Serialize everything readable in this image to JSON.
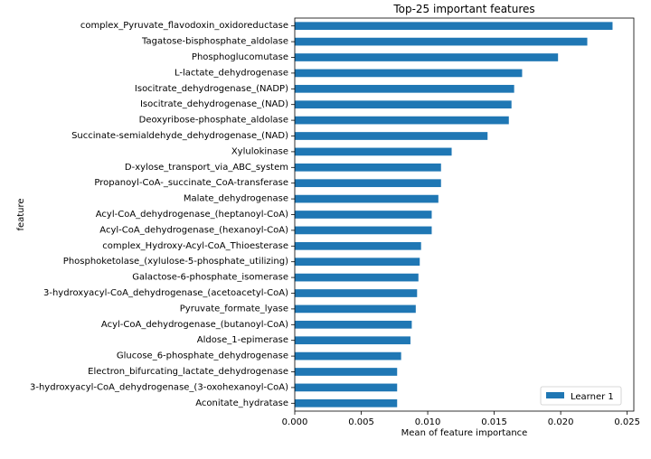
{
  "chart_data": {
    "type": "bar",
    "orientation": "horizontal",
    "title": "Top-25 important features",
    "xlabel": "Mean of feature importance",
    "ylabel": "feature",
    "xlim": [
      0,
      0.0255
    ],
    "xticks": [
      0.0,
      0.005,
      0.01,
      0.015,
      0.02,
      0.025
    ],
    "xtick_labels": [
      "0.000",
      "0.005",
      "0.010",
      "0.015",
      "0.020",
      "0.025"
    ],
    "grid": false,
    "legend_position": "lower-right",
    "bar_color": "#1f77b4",
    "categories": [
      "complex_Pyruvate_flavodoxin_oxidoreductase",
      "Tagatose-bisphosphate_aldolase",
      "Phosphoglucomutase",
      "L-lactate_dehydrogenase",
      "Isocitrate_dehydrogenase_(NADP)",
      "Isocitrate_dehydrogenase_(NAD)",
      "Deoxyribose-phosphate_aldolase",
      "Succinate-semialdehyde_dehydrogenase_(NAD)",
      "Xylulokinase",
      "D-xylose_transport_via_ABC_system",
      "Propanoyl-CoA-_succinate_CoA-transferase",
      "Malate_dehydrogenase",
      "Acyl-CoA_dehydrogenase_(heptanoyl-CoA)",
      "Acyl-CoA_dehydrogenase_(hexanoyl-CoA)",
      "complex_Hydroxy-Acyl-CoA_Thioesterase",
      "Phosphoketolase_(xylulose-5-phosphate_utilizing)",
      "Galactose-6-phosphate_isomerase",
      "3-hydroxyacyl-CoA_dehydrogenase_(acetoacetyl-CoA)",
      "Pyruvate_formate_lyase",
      "Acyl-CoA_dehydrogenase_(butanoyl-CoA)",
      "Aldose_1-epimerase",
      "Glucose_6-phosphate_dehydrogenase",
      "Electron_bifurcating_lactate_dehydrogenase",
      "3-hydroxyacyl-CoA_dehydrogenase_(3-oxohexanoyl-CoA)",
      "Aconitate_hydratase"
    ],
    "series": [
      {
        "name": "Learner 1",
        "values": [
          0.0239,
          0.022,
          0.0198,
          0.0171,
          0.0165,
          0.0163,
          0.0161,
          0.0145,
          0.0118,
          0.011,
          0.011,
          0.0108,
          0.0103,
          0.0103,
          0.0095,
          0.0094,
          0.0093,
          0.0092,
          0.0091,
          0.0088,
          0.0087,
          0.008,
          0.0077,
          0.0077,
          0.0077
        ]
      }
    ]
  }
}
